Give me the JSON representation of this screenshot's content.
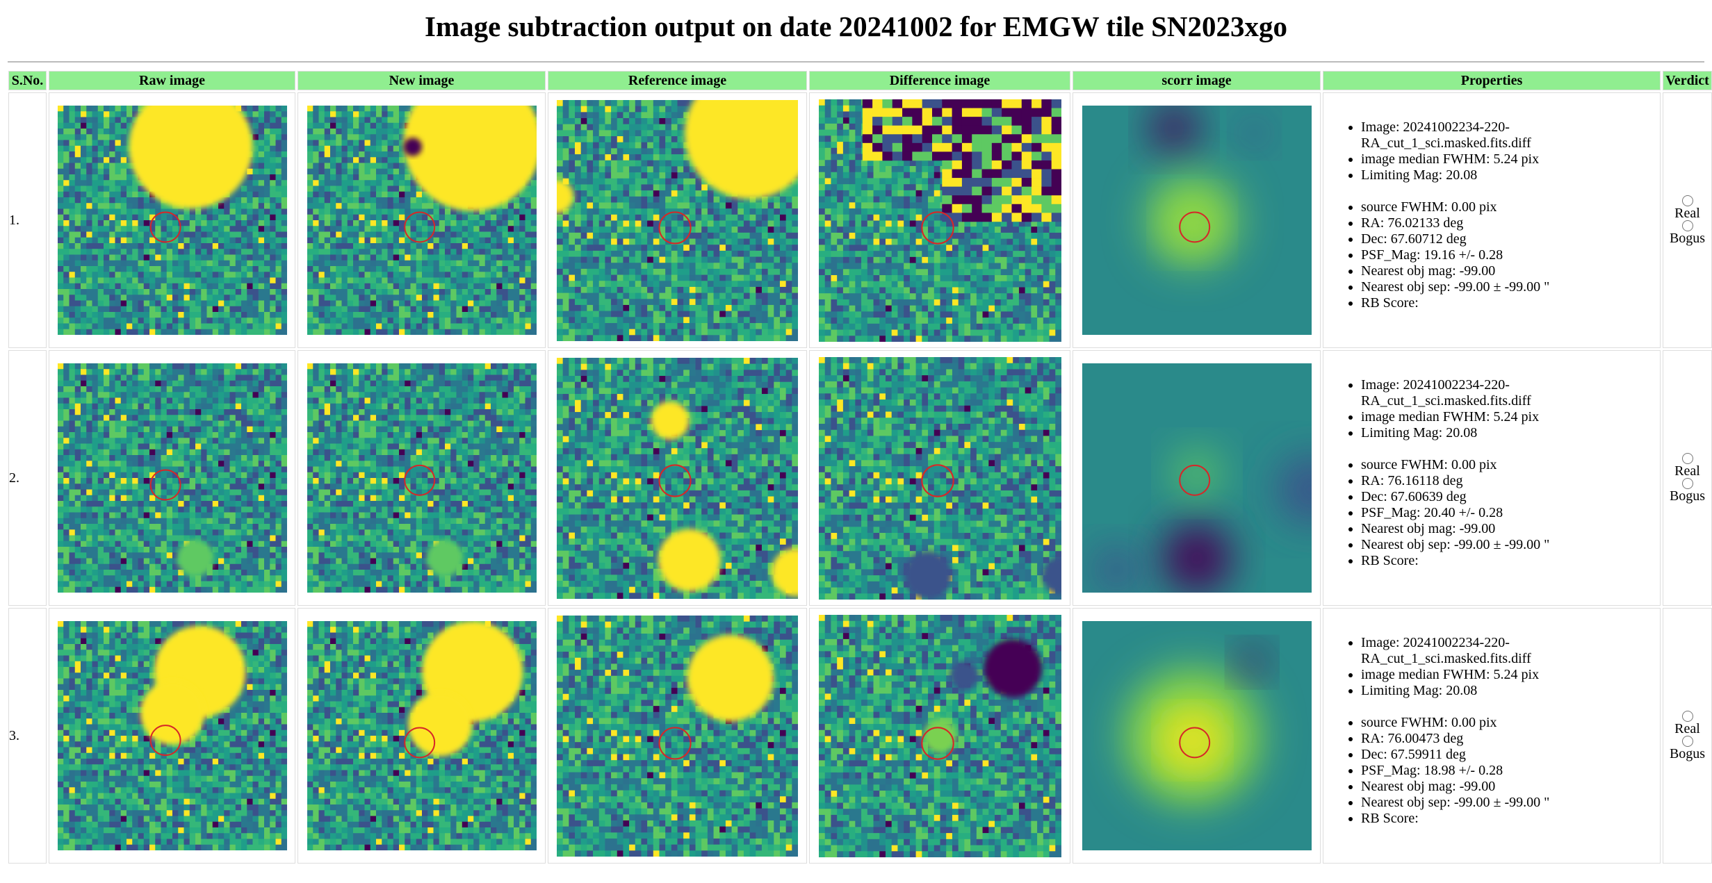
{
  "header": {
    "title": "Image subtraction output on date 20241002 for EMGW tile SN2023xgo"
  },
  "table": {
    "columns": [
      "S.No.",
      "Raw image",
      "New image",
      "Reference image",
      "Difference image",
      "scorr image",
      "Properties",
      "Verdict"
    ],
    "rows": [
      {
        "sno": "1.",
        "properties_a": [
          "Image: 20241002234-220-RA_cut_1_sci.masked.fits.diff",
          "image median FWHM: 5.24 pix",
          "Limiting Mag: 20.08"
        ],
        "properties_b": [
          "source FWHM: 0.00 pix",
          "RA: 76.02133 deg",
          "Dec: 67.60712 deg",
          "PSF_Mag: 19.16 +/- 0.28",
          "Nearest obj mag: -99.00",
          "Nearest obj sep: -99.00 ± -99.00 \"",
          "RB Score:"
        ],
        "verdict": [
          "Real",
          "Bogus"
        ]
      },
      {
        "sno": "2.",
        "properties_a": [
          "Image: 20241002234-220-RA_cut_1_sci.masked.fits.diff",
          "image median FWHM: 5.24 pix",
          "Limiting Mag: 20.08"
        ],
        "properties_b": [
          "source FWHM: 0.00 pix",
          "RA: 76.16118 deg",
          "Dec: 67.60639 deg",
          "PSF_Mag: 20.40 +/- 0.28",
          "Nearest obj mag: -99.00",
          "Nearest obj sep: -99.00 ± -99.00 \"",
          "RB Score:"
        ],
        "verdict": [
          "Real",
          "Bogus"
        ]
      },
      {
        "sno": "3.",
        "properties_a": [
          "Image: 20241002234-220-RA_cut_1_sci.masked.fits.diff",
          "image median FWHM: 5.24 pix",
          "Limiting Mag: 20.08"
        ],
        "properties_b": [
          "source FWHM: 0.00 pix",
          "RA: 76.00473 deg",
          "Dec: 67.59911 deg",
          "PSF_Mag: 18.98 +/- 0.28",
          "Nearest obj mag: -99.00",
          "Nearest obj sep: -99.00 ± -99.00 \"",
          "RB Score:"
        ],
        "verdict": [
          "Real",
          "Bogus"
        ]
      }
    ]
  }
}
